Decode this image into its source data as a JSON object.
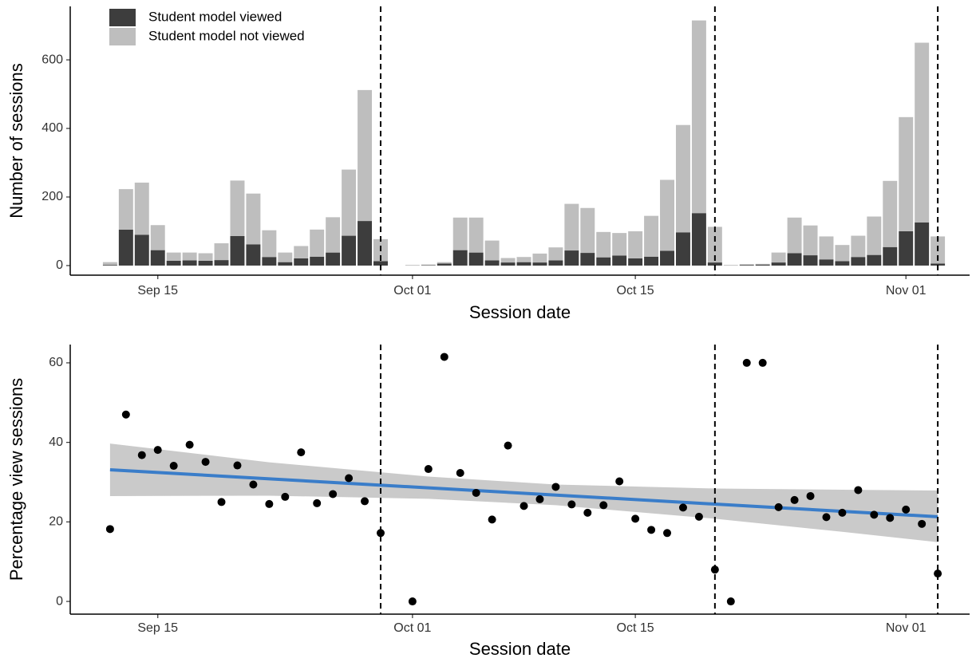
{
  "chart_data": [
    {
      "type": "bar",
      "stacked": true,
      "x": [
        "09-12",
        "09-13",
        "09-14",
        "09-15",
        "09-16",
        "09-17",
        "09-18",
        "09-19",
        "09-20",
        "09-21",
        "09-22",
        "09-23",
        "09-24",
        "09-25",
        "09-26",
        "09-27",
        "09-28",
        "09-29",
        "10-01",
        "10-02",
        "10-03",
        "10-04",
        "10-05",
        "10-06",
        "10-07",
        "10-08",
        "10-09",
        "10-10",
        "10-11",
        "10-12",
        "10-13",
        "10-14",
        "10-15",
        "10-16",
        "10-17",
        "10-18",
        "10-19",
        "10-20",
        "10-21",
        "10-22",
        "10-23",
        "10-24",
        "10-25",
        "10-26",
        "10-27",
        "10-28",
        "10-29",
        "10-30",
        "10-31",
        "11-01",
        "11-02",
        "11-03"
      ],
      "series": [
        {
          "name": "Student model viewed",
          "color": "#3d3d3d",
          "values": [
            2,
            105,
            90,
            45,
            14,
            15,
            14,
            16,
            86,
            62,
            25,
            10,
            21,
            26,
            38,
            87,
            130,
            13,
            0,
            1,
            6,
            45,
            38,
            15,
            9,
            10,
            9,
            15,
            44,
            37,
            24,
            29,
            21,
            26,
            43,
            97,
            153,
            9,
            0,
            2,
            3,
            9,
            36,
            30,
            18,
            13,
            25,
            31,
            54,
            100,
            126,
            6
          ]
        },
        {
          "name": "Student model not viewed",
          "color": "#bebebe",
          "values": [
            8,
            118,
            152,
            73,
            24,
            23,
            22,
            49,
            162,
            148,
            78,
            28,
            36,
            79,
            103,
            193,
            382,
            64,
            2,
            2,
            4,
            95,
            102,
            58,
            13,
            15,
            26,
            38,
            136,
            131,
            74,
            66,
            79,
            119,
            207,
            313,
            562,
            104,
            2,
            2,
            2,
            29,
            104,
            87,
            67,
            47,
            62,
            112,
            193,
            333,
            524,
            79
          ]
        }
      ],
      "xlim": [
        "09-10",
        "11-05"
      ],
      "xticks": [
        {
          "value": "09-15",
          "label": "Sep 15"
        },
        {
          "value": "10-01",
          "label": "Oct 01"
        },
        {
          "value": "10-15",
          "label": "Oct 15"
        },
        {
          "value": "11-01",
          "label": "Nov 01"
        }
      ],
      "ylim": [
        -28,
        756
      ],
      "yticks": [
        0,
        200,
        400,
        600
      ],
      "x_label": "Session date",
      "y_label": "Number of sessions",
      "legend": "top-left",
      "vlines": [
        "09-29",
        "10-20",
        "11-03"
      ]
    },
    {
      "type": "scatter",
      "x": [
        "09-12",
        "09-13",
        "09-14",
        "09-15",
        "09-16",
        "09-17",
        "09-18",
        "09-19",
        "09-20",
        "09-21",
        "09-22",
        "09-23",
        "09-24",
        "09-25",
        "09-26",
        "09-27",
        "09-28",
        "09-29",
        "10-01",
        "10-02",
        "10-03",
        "10-04",
        "10-05",
        "10-06",
        "10-07",
        "10-08",
        "10-09",
        "10-10",
        "10-11",
        "10-12",
        "10-13",
        "10-14",
        "10-15",
        "10-16",
        "10-17",
        "10-18",
        "10-19",
        "10-20",
        "10-21",
        "10-22",
        "10-23",
        "10-24",
        "10-25",
        "10-26",
        "10-27",
        "10-28",
        "10-29",
        "10-30",
        "10-31",
        "11-01",
        "11-02",
        "11-03"
      ],
      "values": [
        18.2,
        47,
        36.8,
        38.1,
        34.1,
        39.4,
        35.1,
        25,
        34.2,
        29.4,
        24.5,
        26.3,
        37.5,
        24.7,
        27,
        31,
        25.2,
        17.2,
        0,
        33.3,
        61.5,
        32.3,
        27.3,
        20.6,
        39.2,
        24,
        25.7,
        28.8,
        24.4,
        22.3,
        24.2,
        30.2,
        20.8,
        18,
        17.2,
        23.6,
        21.3,
        8,
        0,
        60,
        60,
        23.7,
        25.5,
        26.5,
        21.2,
        22.3,
        28,
        21.8,
        21,
        23.1,
        19.5,
        7
      ],
      "color": "#000000",
      "trend": {
        "x": [
          "09-12",
          "11-03"
        ],
        "values": [
          33.1,
          21.3
        ],
        "color": "#3a7dc9"
      },
      "ribbon": {
        "x": [
          "09-12",
          "09-22",
          "10-02",
          "10-10",
          "10-20",
          "10-28",
          "11-03"
        ],
        "lower": [
          26.5,
          26.6,
          25.8,
          24.2,
          20.8,
          17.5,
          14.9
        ],
        "upper": [
          39.7,
          35.0,
          31.4,
          29.4,
          28.4,
          28.1,
          27.9
        ],
        "color": "#c4c4c4"
      },
      "xlim": [
        "09-10",
        "11-05"
      ],
      "xticks": [
        {
          "value": "09-15",
          "label": "Sep 15"
        },
        {
          "value": "10-01",
          "label": "Oct 01"
        },
        {
          "value": "10-15",
          "label": "Oct 15"
        },
        {
          "value": "11-01",
          "label": "Nov 01"
        }
      ],
      "ylim": [
        -3.2,
        64.6
      ],
      "yticks": [
        0,
        20,
        40,
        60
      ],
      "x_label": "Session date",
      "y_label": "Percentage view sessions",
      "vlines": [
        "09-29",
        "10-20",
        "11-03"
      ]
    }
  ]
}
